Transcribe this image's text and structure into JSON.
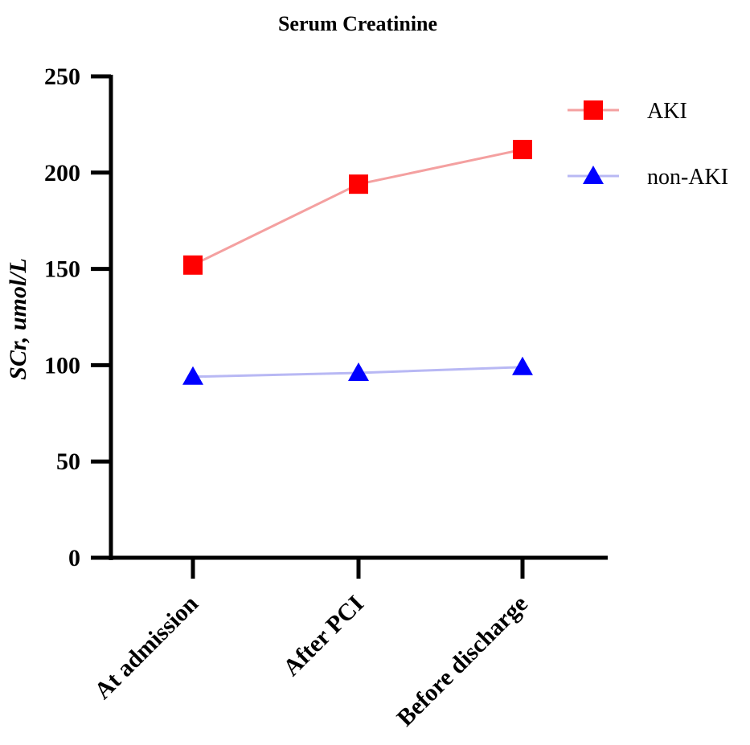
{
  "chart_data": {
    "type": "line",
    "title": "Serum Creatinine",
    "xlabel": "",
    "ylabel": "SCr, umol/L",
    "categories": [
      "At admission",
      "After PCI",
      "Before discharge"
    ],
    "ylim": [
      0,
      250
    ],
    "yticks": [
      0,
      50,
      100,
      150,
      200,
      250
    ],
    "ytick_labels": [
      "0",
      "50",
      "100",
      "150",
      "200",
      "250"
    ],
    "legend_position": "top-right",
    "series": [
      {
        "name": "AKI",
        "values": [
          152,
          194,
          212
        ],
        "marker": "square",
        "marker_color": "#ff0000",
        "line_color": "#f4a0a0"
      },
      {
        "name": "non-AKI",
        "values": [
          94,
          96,
          99
        ],
        "marker": "triangle",
        "marker_color": "#0000ff",
        "line_color": "#b8b8f4"
      }
    ]
  }
}
